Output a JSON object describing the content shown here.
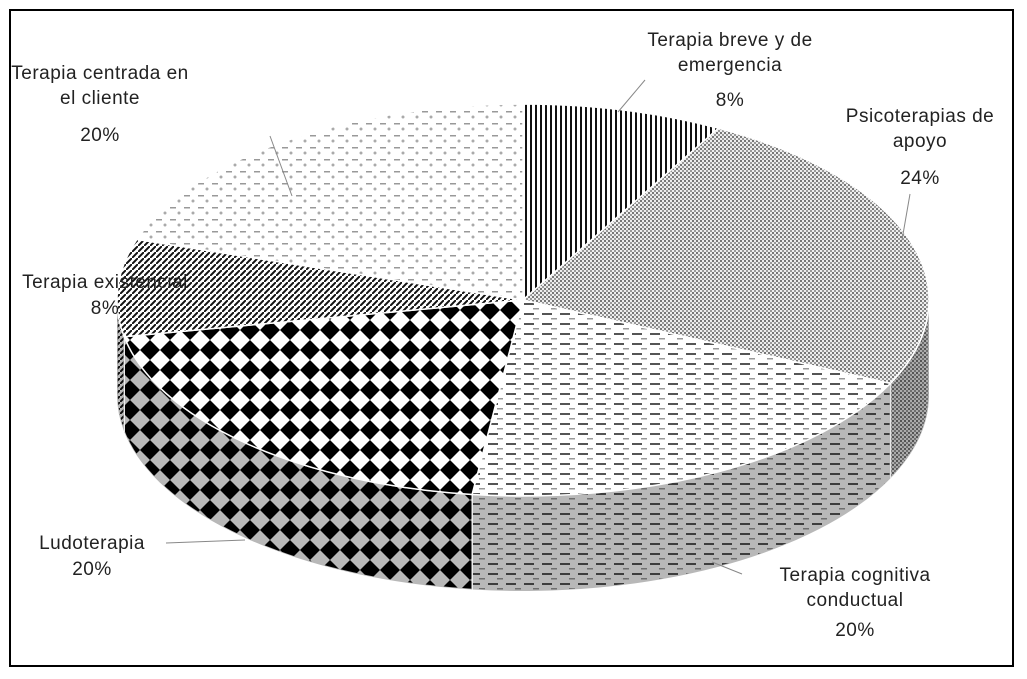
{
  "chart_data": {
    "type": "pie",
    "categories": [
      "Terapia breve y de emergencia",
      "Psicoterapias de apoyo",
      "Terapia cognitiva conductual",
      "Ludoterapia",
      "Terapia existencial",
      "Terapia centrada en el cliente"
    ],
    "values": [
      8,
      24,
      20,
      20,
      8,
      20
    ],
    "value_labels": [
      "8%",
      "24%",
      "20%",
      "20%",
      "8%",
      "20%"
    ]
  }
}
